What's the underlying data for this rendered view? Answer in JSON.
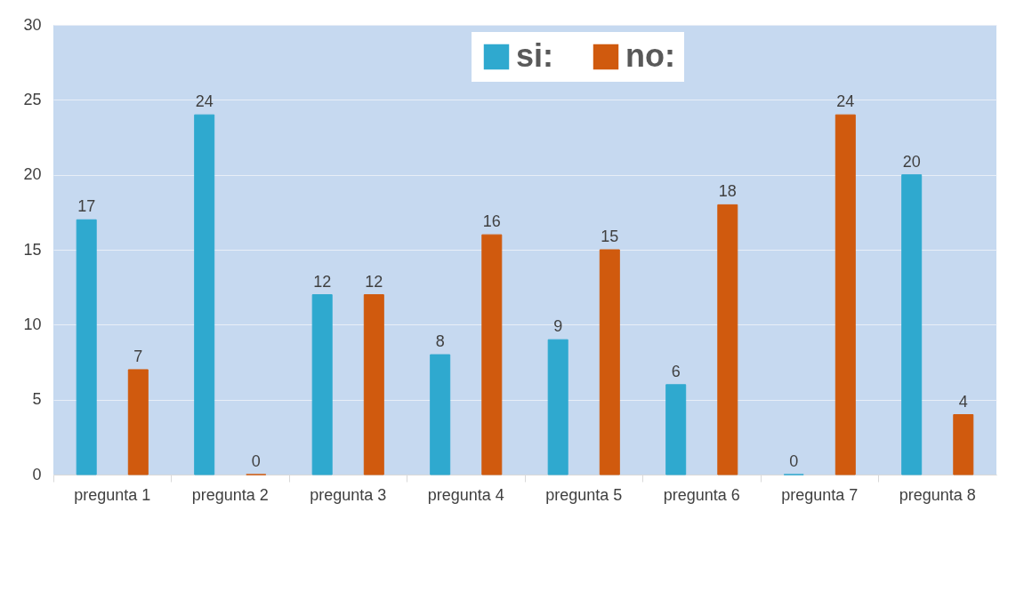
{
  "chart_data": {
    "type": "bar",
    "categories": [
      "pregunta 1",
      "pregunta 2",
      "pregunta 3",
      "pregunta 4",
      "pregunta 5",
      "pregunta 6",
      "pregunta 7",
      "pregunta 8"
    ],
    "series": [
      {
        "name": "si:",
        "color": "#2fa9cf",
        "values": [
          17,
          24,
          12,
          8,
          9,
          6,
          0,
          20
        ]
      },
      {
        "name": "no:",
        "color": "#d05a0e",
        "values": [
          7,
          0,
          12,
          16,
          15,
          18,
          24,
          4
        ]
      }
    ],
    "ylim": [
      0,
      30
    ],
    "yticks": [
      0,
      5,
      10,
      15,
      20,
      25,
      30
    ],
    "grid": "y",
    "legend": "top",
    "data_labels": true
  }
}
